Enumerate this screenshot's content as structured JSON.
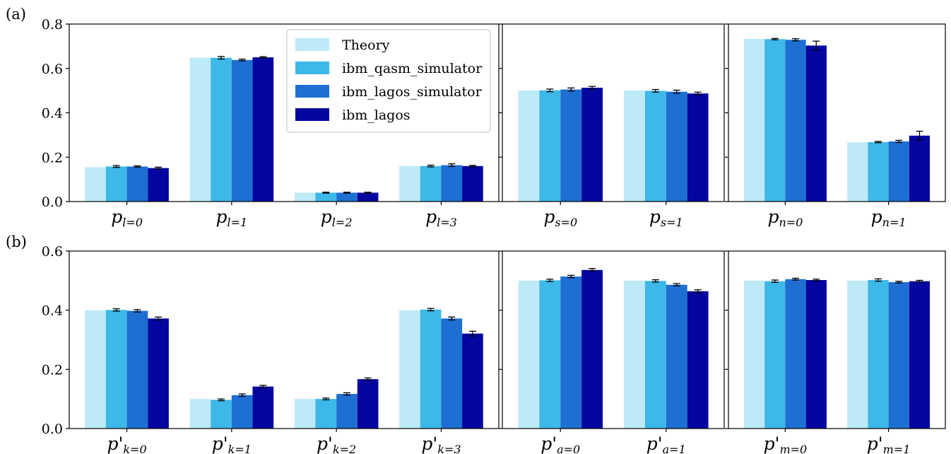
{
  "figure": {
    "panel_labels": [
      "(a)",
      "(b)"
    ],
    "legend": [
      "Theory",
      "ibm_qasm_simulator",
      "ibm_lagos_simulator",
      "ibm_lagos"
    ]
  },
  "colors": [
    "#bdeaf7",
    "#3db8e8",
    "#1f6fd3",
    "#0505a0"
  ],
  "chart_data": [
    {
      "type": "bar",
      "row": "a",
      "categories": [
        "p_{l=0}",
        "p_{l=1}",
        "p_{l=2}",
        "p_{l=3}"
      ],
      "cat_labels": [
        {
          "main": "p",
          "sub": "l=0"
        },
        {
          "main": "p",
          "sub": "l=1"
        },
        {
          "main": "p",
          "sub": "l=2"
        },
        {
          "main": "p",
          "sub": "l=3"
        }
      ],
      "ylim": [
        0,
        0.8
      ],
      "yticks": [
        "0.0",
        "0.2",
        "0.4",
        "0.6",
        "0.8"
      ],
      "show_yticklabels": true,
      "legend": "top-right",
      "series": [
        {
          "name": "Theory",
          "values": [
            0.155,
            0.648,
            0.04,
            0.16
          ],
          "err": [
            0,
            0,
            0,
            0
          ]
        },
        {
          "name": "ibm_qasm_simulator",
          "values": [
            0.158,
            0.648,
            0.04,
            0.16
          ],
          "err": [
            0.004,
            0.006,
            0.002,
            0.004
          ]
        },
        {
          "name": "ibm_lagos_simulator",
          "values": [
            0.158,
            0.638,
            0.04,
            0.164
          ],
          "err": [
            0.003,
            0.004,
            0.002,
            0.006
          ]
        },
        {
          "name": "ibm_lagos",
          "values": [
            0.151,
            0.65,
            0.04,
            0.16
          ],
          "err": [
            0.004,
            0.003,
            0.002,
            0.003
          ]
        }
      ]
    },
    {
      "type": "bar",
      "row": "a",
      "categories": [
        "p_{s=0}",
        "p_{s=1}"
      ],
      "cat_labels": [
        {
          "main": "p",
          "sub": "s=0"
        },
        {
          "main": "p",
          "sub": "s=1"
        }
      ],
      "ylim": [
        0,
        0.8
      ],
      "yticks": [
        "0.0",
        "0.2",
        "0.4",
        "0.6",
        "0.8"
      ],
      "show_yticklabels": false,
      "series": [
        {
          "name": "Theory",
          "values": [
            0.5,
            0.5
          ],
          "err": [
            0,
            0
          ]
        },
        {
          "name": "ibm_qasm_simulator",
          "values": [
            0.501,
            0.499
          ],
          "err": [
            0.006,
            0.006
          ]
        },
        {
          "name": "ibm_lagos_simulator",
          "values": [
            0.505,
            0.495
          ],
          "err": [
            0.007,
            0.007
          ]
        },
        {
          "name": "ibm_lagos",
          "values": [
            0.513,
            0.487
          ],
          "err": [
            0.006,
            0.006
          ]
        }
      ]
    },
    {
      "type": "bar",
      "row": "a",
      "categories": [
        "p_{n=0}",
        "p_{n=1}"
      ],
      "cat_labels": [
        {
          "main": "p",
          "sub": "n=0"
        },
        {
          "main": "p",
          "sub": "n=1"
        }
      ],
      "ylim": [
        0,
        0.8
      ],
      "yticks": [
        "0.0",
        "0.2",
        "0.4",
        "0.6",
        "0.8"
      ],
      "show_yticklabels": false,
      "series": [
        {
          "name": "Theory",
          "values": [
            0.733,
            0.267
          ],
          "err": [
            0,
            0
          ]
        },
        {
          "name": "ibm_qasm_simulator",
          "values": [
            0.732,
            0.268
          ],
          "err": [
            0.003,
            0.003
          ]
        },
        {
          "name": "ibm_lagos_simulator",
          "values": [
            0.729,
            0.271
          ],
          "err": [
            0.005,
            0.005
          ]
        },
        {
          "name": "ibm_lagos",
          "values": [
            0.703,
            0.297
          ],
          "err": [
            0.02,
            0.02
          ]
        }
      ]
    },
    {
      "type": "bar",
      "row": "b",
      "categories": [
        "p'_{k=0}",
        "p'_{k=1}",
        "p'_{k=2}",
        "p'_{k=3}"
      ],
      "cat_labels": [
        {
          "main": "p'",
          "sub": "k=0"
        },
        {
          "main": "p'",
          "sub": "k=1"
        },
        {
          "main": "p'",
          "sub": "k=2"
        },
        {
          "main": "p'",
          "sub": "k=3"
        }
      ],
      "ylim": [
        0,
        0.6
      ],
      "yticks": [
        "0.0",
        "0.2",
        "0.4",
        "0.6"
      ],
      "show_yticklabels": true,
      "series": [
        {
          "name": "Theory",
          "values": [
            0.4,
            0.1,
            0.1,
            0.4
          ],
          "err": [
            0,
            0,
            0,
            0
          ]
        },
        {
          "name": "ibm_qasm_simulator",
          "values": [
            0.401,
            0.097,
            0.1,
            0.402
          ],
          "err": [
            0.004,
            0.003,
            0.003,
            0.004
          ]
        },
        {
          "name": "ibm_lagos_simulator",
          "values": [
            0.398,
            0.113,
            0.117,
            0.372
          ],
          "err": [
            0.004,
            0.004,
            0.004,
            0.005
          ]
        },
        {
          "name": "ibm_lagos",
          "values": [
            0.372,
            0.142,
            0.167,
            0.321
          ],
          "err": [
            0.005,
            0.004,
            0.004,
            0.008
          ]
        }
      ]
    },
    {
      "type": "bar",
      "row": "b",
      "categories": [
        "p'_{a=0}",
        "p'_{a=1}"
      ],
      "cat_labels": [
        {
          "main": "p'",
          "sub": "a=0"
        },
        {
          "main": "p'",
          "sub": "a=1"
        }
      ],
      "ylim": [
        0,
        0.6
      ],
      "yticks": [
        "0.0",
        "0.2",
        "0.4",
        "0.6"
      ],
      "show_yticklabels": false,
      "series": [
        {
          "name": "Theory",
          "values": [
            0.5,
            0.5
          ],
          "err": [
            0,
            0
          ]
        },
        {
          "name": "ibm_qasm_simulator",
          "values": [
            0.501,
            0.499
          ],
          "err": [
            0.004,
            0.004
          ]
        },
        {
          "name": "ibm_lagos_simulator",
          "values": [
            0.514,
            0.486
          ],
          "err": [
            0.004,
            0.004
          ]
        },
        {
          "name": "ibm_lagos",
          "values": [
            0.536,
            0.464
          ],
          "err": [
            0.005,
            0.005
          ]
        }
      ]
    },
    {
      "type": "bar",
      "row": "b",
      "categories": [
        "p'_{m=0}",
        "p'_{m=1}"
      ],
      "cat_labels": [
        {
          "main": "p'",
          "sub": "m=0"
        },
        {
          "main": "p'",
          "sub": "m=1"
        }
      ],
      "ylim": [
        0,
        0.6
      ],
      "yticks": [
        "0.0",
        "0.2",
        "0.4",
        "0.6"
      ],
      "show_yticklabels": false,
      "series": [
        {
          "name": "Theory",
          "values": [
            0.5,
            0.5
          ],
          "err": [
            0,
            0
          ]
        },
        {
          "name": "ibm_qasm_simulator",
          "values": [
            0.498,
            0.502
          ],
          "err": [
            0.004,
            0.004
          ]
        },
        {
          "name": "ibm_lagos_simulator",
          "values": [
            0.505,
            0.495
          ],
          "err": [
            0.003,
            0.003
          ]
        },
        {
          "name": "ibm_lagos",
          "values": [
            0.502,
            0.498
          ],
          "err": [
            0.003,
            0.003
          ]
        }
      ]
    }
  ]
}
